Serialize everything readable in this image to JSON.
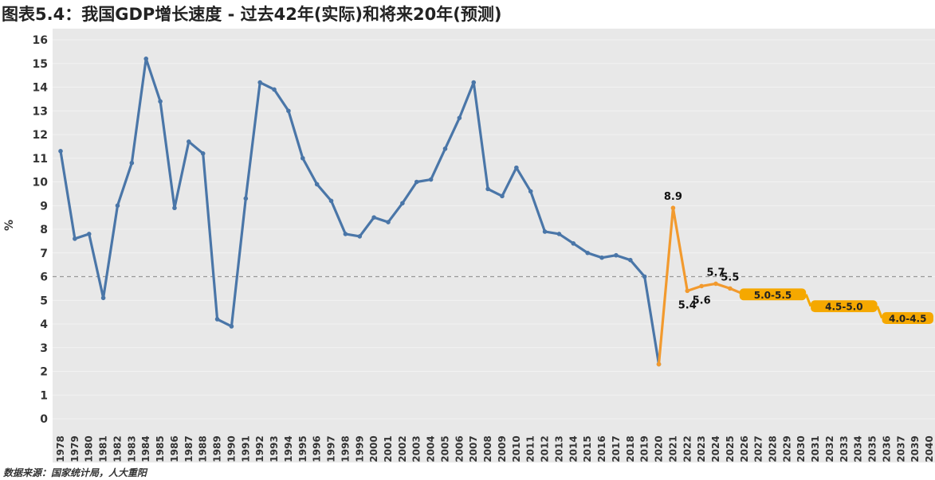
{
  "title": "图表5.4：我国GDP增长速度 - 过去42年(实际)和将来20年(预测)",
  "source": "数据来源：国家统计局，人大重阳",
  "colors": {
    "actual": "#4a76a8",
    "forecast": "#f29a2e",
    "range_box": "#f5a800",
    "plot_bg": "#e8e8e8",
    "reference": "#999999"
  },
  "chart_data": {
    "type": "line",
    "ylabel": "%",
    "ylim": [
      0,
      16
    ],
    "yticks": [
      0,
      1,
      2,
      3,
      4,
      5,
      6,
      7,
      8,
      9,
      10,
      11,
      12,
      13,
      14,
      15,
      16
    ],
    "reference_line": 6,
    "x_categories": [
      "1978",
      "1979",
      "1980",
      "1981",
      "1982",
      "1983",
      "1984",
      "1985",
      "1986",
      "1987",
      "1988",
      "1989",
      "1990",
      "1991",
      "1992",
      "1993",
      "1994",
      "1995",
      "1996",
      "1997",
      "1998",
      "1999",
      "2000",
      "2001",
      "2002",
      "2003",
      "2004",
      "2005",
      "2006",
      "2007",
      "2008",
      "2009",
      "2010",
      "2011",
      "2012",
      "2013",
      "2014",
      "2015",
      "2016",
      "2017",
      "2018",
      "2019",
      "2020",
      "2021",
      "2022",
      "2023",
      "2024",
      "2025",
      "2026",
      "2027",
      "2028",
      "2029",
      "2030",
      "2031",
      "2032",
      "2033",
      "2034",
      "2035",
      "2036",
      "2037",
      "2039",
      "2040"
    ],
    "series": [
      {
        "key": "actual",
        "x": [
          "1978",
          "1979",
          "1980",
          "1981",
          "1982",
          "1983",
          "1984",
          "1985",
          "1986",
          "1987",
          "1988",
          "1989",
          "1990",
          "1991",
          "1992",
          "1993",
          "1994",
          "1995",
          "1996",
          "1997",
          "1998",
          "1999",
          "2000",
          "2001",
          "2002",
          "2003",
          "2004",
          "2005",
          "2006",
          "2007",
          "2008",
          "2009",
          "2010",
          "2011",
          "2012",
          "2013",
          "2014",
          "2015",
          "2016",
          "2017",
          "2018",
          "2019",
          "2020"
        ],
        "values": [
          11.3,
          7.6,
          7.8,
          5.1,
          9.0,
          10.8,
          15.2,
          13.4,
          8.9,
          11.7,
          11.2,
          4.2,
          3.9,
          9.3,
          14.2,
          13.9,
          13.0,
          11.0,
          9.9,
          9.2,
          7.8,
          7.7,
          8.5,
          8.3,
          9.1,
          10.0,
          10.1,
          11.4,
          12.7,
          14.2,
          9.7,
          9.4,
          10.6,
          9.6,
          7.9,
          7.8,
          7.4,
          7.0,
          6.8,
          6.9,
          6.7,
          6.0,
          2.3
        ]
      },
      {
        "key": "forecast",
        "x": [
          "2020",
          "2021",
          "2022",
          "2023",
          "2024",
          "2025",
          "2026"
        ],
        "values": [
          2.3,
          8.9,
          5.4,
          5.6,
          5.7,
          5.5,
          5.25
        ]
      }
    ],
    "data_labels": [
      {
        "x": "2021",
        "y": 8.9,
        "text": "8.9",
        "pos": "above"
      },
      {
        "x": "2022",
        "y": 5.4,
        "text": "5.4",
        "pos": "below"
      },
      {
        "x": "2023",
        "y": 5.6,
        "text": "5.6",
        "pos": "below"
      },
      {
        "x": "2024",
        "y": 5.7,
        "text": "5.7",
        "pos": "above"
      },
      {
        "x": "2025",
        "y": 5.5,
        "text": "5.5",
        "pos": "above"
      }
    ],
    "ranges": [
      {
        "label": "5.0-5.5",
        "from": "2026",
        "to": "2030",
        "low": 5.0,
        "high": 5.5
      },
      {
        "label": "4.5-5.0",
        "from": "2031",
        "to": "2035",
        "low": 4.5,
        "high": 5.0
      },
      {
        "label": "4.0-4.5",
        "from": "2036",
        "to": "2040",
        "low": 4.0,
        "high": 4.5
      }
    ]
  }
}
